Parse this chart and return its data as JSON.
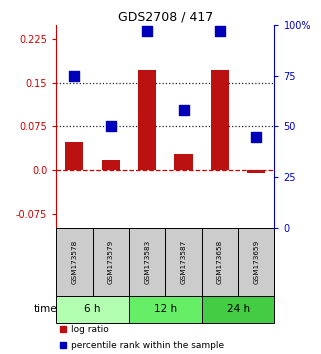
{
  "title": "GDS2708 / 417",
  "samples": [
    "GSM173578",
    "GSM173579",
    "GSM173583",
    "GSM173587",
    "GSM173658",
    "GSM173659"
  ],
  "log_ratio": [
    0.048,
    0.018,
    0.172,
    0.028,
    0.172,
    -0.005
  ],
  "percentile_rank": [
    75,
    50,
    97,
    58,
    97,
    45
  ],
  "groups": [
    {
      "label": "6 h",
      "indices": [
        0,
        1
      ],
      "color": "#b2ffb2"
    },
    {
      "label": "12 h",
      "indices": [
        2,
        3
      ],
      "color": "#66ee66"
    },
    {
      "label": "24 h",
      "indices": [
        4,
        5
      ],
      "color": "#44cc44"
    }
  ],
  "ylim_left": [
    -0.1,
    0.25
  ],
  "ylim_right": [
    0,
    100
  ],
  "yticks_left": [
    -0.075,
    0.0,
    0.075,
    0.15,
    0.225
  ],
  "yticks_right": [
    0,
    25,
    50,
    75,
    100
  ],
  "hlines": [
    0.0,
    0.075,
    0.15
  ],
  "hlines_styles": [
    "dashed",
    "dotted",
    "dotted"
  ],
  "hlines_colors": [
    "#cc0000",
    "#222222",
    "#222222"
  ],
  "bar_color": "#bb1111",
  "dot_color": "#0000bb",
  "bar_width": 0.5,
  "dot_size": 55,
  "left_tick_color": "#cc0000",
  "right_tick_color": "#0000cc",
  "sample_box_color": "#cccccc",
  "legend_red_label": "log ratio",
  "legend_blue_label": "percentile rank within the sample",
  "time_label": "time",
  "bg_color": "#ffffff"
}
